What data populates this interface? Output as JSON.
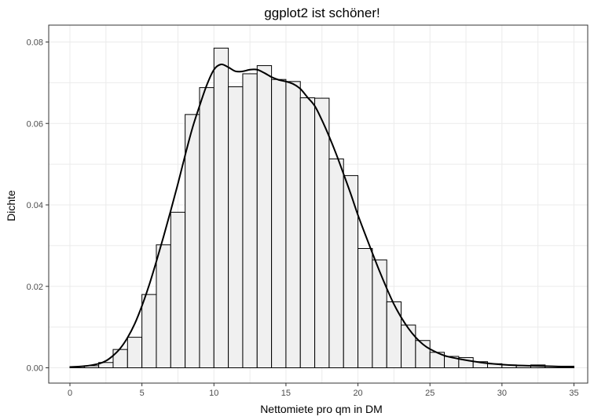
{
  "chart_data": {
    "type": "bar",
    "title": "ggplot2 ist schöner!",
    "xlabel": "Nettomiete pro qm in DM",
    "ylabel": "Dichte",
    "xlim": [
      0,
      35
    ],
    "ylim": [
      0,
      0.08
    ],
    "x_ticks": [
      "0",
      "5",
      "10",
      "15",
      "20",
      "25",
      "30",
      "35"
    ],
    "y_ticks": [
      "0.00",
      "0.02",
      "0.04",
      "0.06",
      "0.08"
    ],
    "grid": true,
    "histogram": {
      "bin_edges": [
        0,
        1,
        2,
        3,
        4,
        5,
        6,
        7,
        8,
        9,
        10,
        11,
        12,
        13,
        14,
        15,
        16,
        17,
        18,
        19,
        20,
        21,
        22,
        23,
        24,
        25,
        26,
        27,
        28,
        29,
        30,
        31,
        32,
        33,
        34,
        35
      ],
      "values": [
        0.0003,
        0.0005,
        0.0013,
        0.0045,
        0.0075,
        0.018,
        0.0302,
        0.0382,
        0.0622,
        0.0688,
        0.0785,
        0.069,
        0.0722,
        0.0742,
        0.0708,
        0.0703,
        0.0663,
        0.0662,
        0.0513,
        0.0472,
        0.0293,
        0.0265,
        0.0162,
        0.0105,
        0.0067,
        0.0038,
        0.0028,
        0.0025,
        0.0015,
        0.001,
        0.0007,
        0.0005,
        0.0007,
        0.0004,
        0.0004
      ]
    },
    "density": {
      "name": "",
      "x": [
        0,
        1,
        2,
        2.5,
        3,
        3.5,
        4,
        4.5,
        5,
        5.5,
        6,
        6.5,
        7,
        7.5,
        8,
        8.5,
        9,
        9.5,
        10,
        10.5,
        11,
        11.5,
        12,
        12.5,
        13,
        13.5,
        14,
        14.5,
        15,
        15.5,
        16,
        16.5,
        17,
        17.5,
        18,
        18.5,
        19,
        19.5,
        20,
        20.5,
        21,
        21.5,
        22,
        22.5,
        23,
        23.5,
        24,
        24.5,
        25,
        26,
        27,
        28,
        29,
        30,
        31,
        32,
        33,
        34,
        35
      ],
      "y": [
        0.0002,
        0.0004,
        0.001,
        0.0017,
        0.003,
        0.0048,
        0.0074,
        0.0108,
        0.0152,
        0.0203,
        0.0261,
        0.0322,
        0.0386,
        0.0452,
        0.0522,
        0.0588,
        0.0643,
        0.0694,
        0.0732,
        0.0745,
        0.0738,
        0.0728,
        0.0728,
        0.0732,
        0.0732,
        0.0724,
        0.0714,
        0.0707,
        0.0703,
        0.0697,
        0.0685,
        0.0664,
        0.0643,
        0.0608,
        0.0568,
        0.0524,
        0.0476,
        0.0427,
        0.0375,
        0.0328,
        0.0282,
        0.0237,
        0.0195,
        0.0156,
        0.0124,
        0.0097,
        0.0075,
        0.0058,
        0.0046,
        0.003,
        0.0022,
        0.0016,
        0.0011,
        0.0008,
        0.0006,
        0.0005,
        0.0004,
        0.0003,
        0.0002
      ]
    },
    "colors": {
      "bar_fill": "#f0f0f0",
      "bar_stroke": "#000000",
      "density_line": "#000000",
      "grid": "#ebebeb",
      "panel_border": "#333333",
      "tick_text": "#4d4d4d"
    }
  }
}
